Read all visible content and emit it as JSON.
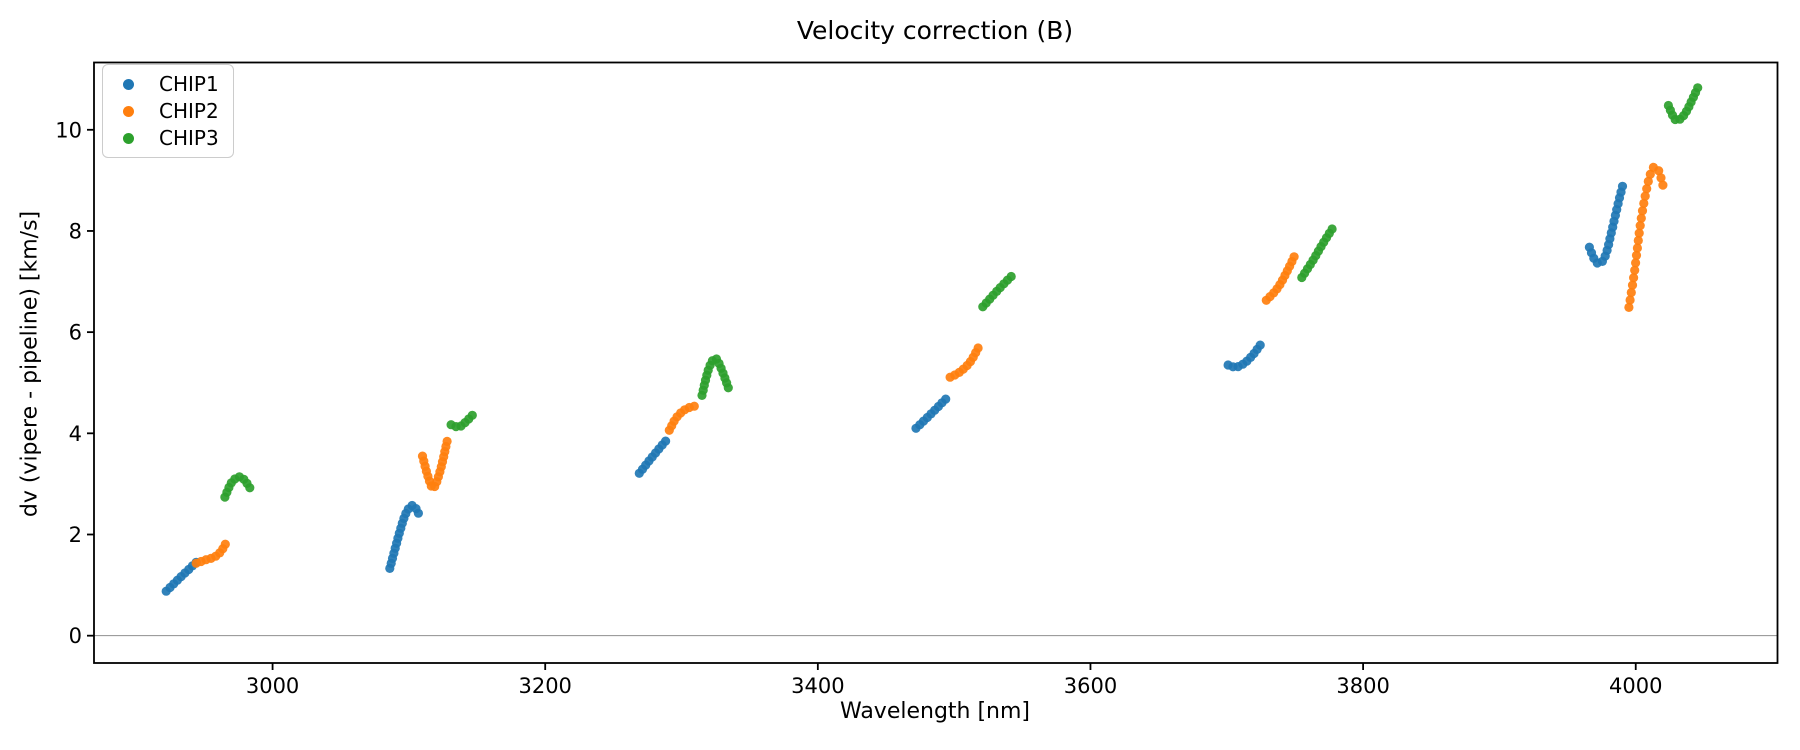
{
  "chart_data": {
    "type": "scatter",
    "title": "Velocity correction (B)",
    "xlabel": "Wavelength [nm]",
    "ylabel": "dv (vipere - pipeline) [km/s]",
    "xlim": [
      2869,
      4104
    ],
    "ylim": [
      -0.54,
      11.33
    ],
    "xticks": [
      3000,
      3200,
      3400,
      3600,
      3800,
      4000
    ],
    "yticks": [
      0,
      2,
      4,
      6,
      8,
      10
    ],
    "grid": false,
    "hline_y": 0,
    "legend": {
      "position": "upper left"
    },
    "series": [
      {
        "name": "CHIP1",
        "color": "#1f77b4",
        "segments": [
          {
            "points": [
              [
                2922,
                0.88
              ],
              [
                2933,
                1.17
              ],
              [
                2944,
                1.45
              ]
            ]
          },
          {
            "points": [
              [
                3086,
                1.33
              ],
              [
                3090,
                1.73
              ],
              [
                3094,
                2.12
              ],
              [
                3098,
                2.43
              ],
              [
                3102,
                2.57
              ],
              [
                3105,
                2.52
              ],
              [
                3108,
                2.36
              ]
            ]
          },
          {
            "points": [
              [
                3269,
                3.21
              ],
              [
                3279,
                3.55
              ],
              [
                3290,
                3.9
              ]
            ]
          },
          {
            "points": [
              [
                3472,
                4.1
              ],
              [
                3484,
                4.41
              ],
              [
                3495,
                4.71
              ]
            ]
          },
          {
            "points": [
              [
                3701,
                5.35
              ],
              [
                3707,
                5.31
              ],
              [
                3714,
                5.41
              ],
              [
                3720,
                5.58
              ],
              [
                3726,
                5.8
              ]
            ]
          },
          {
            "points": [
              [
                3966,
                7.68
              ],
              [
                3970,
                7.42
              ],
              [
                3974,
                7.36
              ],
              [
                3978,
                7.53
              ],
              [
                3982,
                7.95
              ],
              [
                3985,
                8.3
              ],
              [
                3988,
                8.64
              ],
              [
                3991,
                8.96
              ]
            ],
            "step": 6
          }
        ]
      },
      {
        "name": "CHIP2",
        "color": "#ff7f0e",
        "segments": [
          {
            "points": [
              [
                2944,
                1.43
              ],
              [
                2951,
                1.5
              ],
              [
                2957,
                1.55
              ],
              [
                2962,
                1.66
              ],
              [
                2966,
                1.84
              ]
            ]
          },
          {
            "points": [
              [
                3110,
                3.55
              ],
              [
                3114,
                3.15
              ],
              [
                3118,
                2.92
              ],
              [
                3123,
                3.26
              ],
              [
                3128,
                3.84
              ]
            ]
          },
          {
            "points": [
              [
                3291,
                4.06
              ],
              [
                3296,
                4.3
              ],
              [
                3302,
                4.46
              ],
              [
                3308,
                4.53
              ],
              [
                3313,
                4.54
              ]
            ]
          },
          {
            "points": [
              [
                3497,
                5.11
              ],
              [
                3504,
                5.21
              ],
              [
                3512,
                5.42
              ],
              [
                3519,
                5.76
              ]
            ]
          },
          {
            "points": [
              [
                3729,
                6.63
              ],
              [
                3737,
                6.86
              ],
              [
                3744,
                7.19
              ],
              [
                3751,
                7.58
              ]
            ]
          },
          {
            "points": [
              [
                3995,
                6.49
              ],
              [
                3999,
                7.18
              ],
              [
                4003,
                8.05
              ],
              [
                4007,
                8.7
              ],
              [
                4011,
                9.15
              ],
              [
                4014,
                9.27
              ],
              [
                4017,
                9.18
              ],
              [
                4020,
                8.9
              ]
            ],
            "step": 7.5
          }
        ]
      },
      {
        "name": "CHIP3",
        "color": "#2ca02c",
        "segments": [
          {
            "points": [
              [
                2965,
                2.74
              ],
              [
                2970,
                3.03
              ],
              [
                2976,
                3.14
              ],
              [
                2981,
                3.02
              ],
              [
                2985,
                2.84
              ]
            ]
          },
          {
            "points": [
              [
                3131,
                4.17
              ],
              [
                3137,
                4.13
              ],
              [
                3143,
                4.26
              ],
              [
                3149,
                4.43
              ]
            ]
          },
          {
            "points": [
              [
                3315,
                4.75
              ],
              [
                3320,
                5.28
              ],
              [
                3325,
                5.48
              ],
              [
                3330,
                5.22
              ],
              [
                3335,
                4.85
              ]
            ]
          },
          {
            "points": [
              [
                3521,
                6.5
              ],
              [
                3532,
                6.83
              ],
              [
                3544,
                7.16
              ]
            ]
          },
          {
            "points": [
              [
                3755,
                7.08
              ],
              [
                3763,
                7.41
              ],
              [
                3770,
                7.73
              ],
              [
                3778,
                8.07
              ]
            ]
          },
          {
            "points": [
              [
                4024,
                10.48
              ],
              [
                4028,
                10.24
              ],
              [
                4031,
                10.19
              ],
              [
                4036,
                10.31
              ],
              [
                4041,
                10.57
              ],
              [
                4047,
                10.92
              ]
            ]
          }
        ]
      }
    ]
  }
}
